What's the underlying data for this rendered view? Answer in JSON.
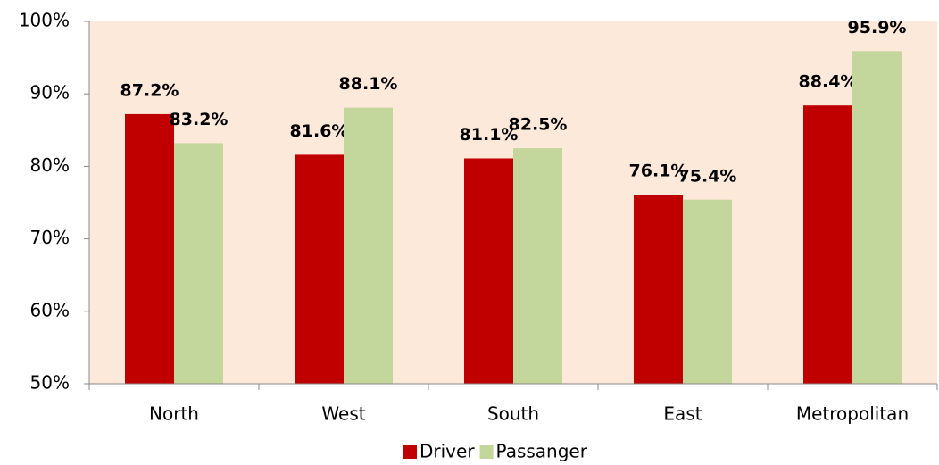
{
  "chart_data": {
    "type": "bar",
    "categories": [
      "North",
      "West",
      "South",
      "East",
      "Metropolitan"
    ],
    "series": [
      {
        "name": "Driver",
        "color": "#c00000",
        "values": [
          87.2,
          81.6,
          81.1,
          76.1,
          88.4
        ],
        "value_labels": [
          "87.2%",
          "81.6%",
          "81.1%",
          "76.1%",
          "88.4%"
        ]
      },
      {
        "name": "Passanger",
        "color": "#c3d69b",
        "values": [
          83.2,
          88.1,
          82.5,
          75.4,
          95.9
        ],
        "value_labels": [
          "83.2%",
          "88.1%",
          "82.5%",
          "75.4%",
          "95.9%"
        ]
      }
    ],
    "ylim": [
      50,
      100
    ],
    "yticks": [
      {
        "value": 50,
        "label": "50%"
      },
      {
        "value": 60,
        "label": "60%"
      },
      {
        "value": 70,
        "label": "70%"
      },
      {
        "value": 80,
        "label": "80%"
      },
      {
        "value": 90,
        "label": "90%"
      },
      {
        "value": 100,
        "label": "100%"
      }
    ],
    "background": "#fde9d9",
    "legend": "bottom"
  }
}
